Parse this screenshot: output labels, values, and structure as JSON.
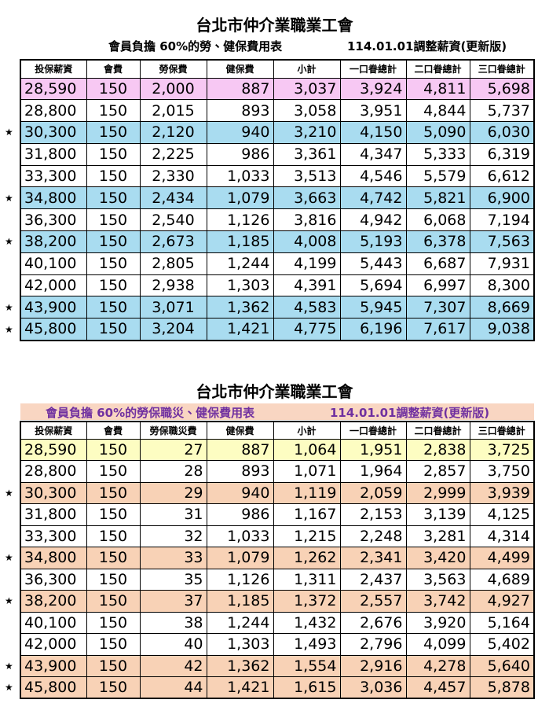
{
  "tables": [
    {
      "title": "台北市仲介業職業工會",
      "subtitle_left": "會員負擔 60%的勞、健保費用表",
      "subtitle_right": "114.01.01調整薪資(更新版)",
      "header": [
        "投保薪資",
        "會費",
        "勞保費",
        "健保費",
        "小計",
        "一口眷總計",
        "二口眷總計",
        "三口眷總計"
      ],
      "rows": [
        {
          "cells": [
            "28,590",
            "150",
            "2,000",
            "887",
            "3,037",
            "3,924",
            "4,811",
            "5,698"
          ]
        },
        {
          "cells": [
            "28,800",
            "150",
            "2,015",
            "893",
            "3,058",
            "3,951",
            "4,844",
            "5,737"
          ]
        },
        {
          "marker": "★",
          "cells": [
            "30,300",
            "150",
            "2,120",
            "940",
            "3,210",
            "4,150",
            "5,090",
            "6,030"
          ]
        },
        {
          "cells": [
            "31,800",
            "150",
            "2,225",
            "986",
            "3,361",
            "4,347",
            "5,333",
            "6,319"
          ]
        },
        {
          "cells": [
            "33,300",
            "150",
            "2,330",
            "1,033",
            "3,513",
            "4,546",
            "5,579",
            "6,612"
          ]
        },
        {
          "marker": "★",
          "cells": [
            "34,800",
            "150",
            "2,434",
            "1,079",
            "3,663",
            "4,742",
            "5,821",
            "6,900"
          ]
        },
        {
          "cells": [
            "36,300",
            "150",
            "2,540",
            "1,126",
            "3,816",
            "4,942",
            "6,068",
            "7,194"
          ]
        },
        {
          "marker": "★",
          "cells": [
            "38,200",
            "150",
            "2,673",
            "1,185",
            "4,008",
            "5,193",
            "6,378",
            "7,563"
          ]
        },
        {
          "cells": [
            "40,100",
            "150",
            "2,805",
            "1,244",
            "4,199",
            "5,443",
            "6,687",
            "7,931"
          ]
        },
        {
          "cells": [
            "42,000",
            "150",
            "2,938",
            "1,303",
            "4,391",
            "5,694",
            "6,997",
            "8,300"
          ]
        },
        {
          "marker": "★",
          "cells": [
            "43,900",
            "150",
            "3,071",
            "1,362",
            "4,583",
            "5,945",
            "7,307",
            "8,669"
          ]
        },
        {
          "marker": "★",
          "cells": [
            "45,800",
            "150",
            "3,204",
            "1,421",
            "4,775",
            "6,196",
            "7,617",
            "9,038"
          ]
        }
      ]
    },
    {
      "title": "台北市仲介業職業工會",
      "subtitle_left": "會員負擔 60%的勞保職災、健保費用表",
      "subtitle_right": "114.01.01調整薪資(更新版)",
      "header": [
        "投保薪資",
        "會費",
        "勞保職災費",
        "健保費",
        "小計",
        "一口眷總計",
        "二口眷總計",
        "三口眷總計"
      ],
      "rows": [
        {
          "cells": [
            "28,590",
            "150",
            "27",
            "887",
            "1,064",
            "1,951",
            "2,838",
            "3,725"
          ]
        },
        {
          "cells": [
            "28,800",
            "150",
            "28",
            "893",
            "1,071",
            "1,964",
            "2,857",
            "3,750"
          ]
        },
        {
          "marker": "★",
          "cells": [
            "30,300",
            "150",
            "29",
            "940",
            "1,119",
            "2,059",
            "2,999",
            "3,939"
          ]
        },
        {
          "cells": [
            "31,800",
            "150",
            "31",
            "986",
            "1,167",
            "2,153",
            "3,139",
            "4,125"
          ]
        },
        {
          "cells": [
            "33,300",
            "150",
            "32",
            "1,033",
            "1,215",
            "2,248",
            "3,281",
            "4,314"
          ]
        },
        {
          "marker": "★",
          "cells": [
            "34,800",
            "150",
            "33",
            "1,079",
            "1,262",
            "2,341",
            "3,420",
            "4,499"
          ]
        },
        {
          "cells": [
            "36,300",
            "150",
            "35",
            "1,126",
            "1,311",
            "2,437",
            "3,563",
            "4,689"
          ]
        },
        {
          "marker": "★",
          "cells": [
            "38,200",
            "150",
            "37",
            "1,185",
            "1,372",
            "2,557",
            "3,742",
            "4,927"
          ]
        },
        {
          "cells": [
            "40,100",
            "150",
            "38",
            "1,244",
            "1,432",
            "2,676",
            "3,920",
            "5,164"
          ]
        },
        {
          "cells": [
            "42,000",
            "150",
            "40",
            "1,303",
            "1,493",
            "2,796",
            "4,099",
            "5,402"
          ]
        },
        {
          "marker": "★",
          "cells": [
            "43,900",
            "150",
            "42",
            "1,362",
            "1,554",
            "2,916",
            "4,278",
            "5,640"
          ]
        },
        {
          "marker": "★",
          "cells": [
            "45,800",
            "150",
            "44",
            "1,421",
            "1,615",
            "3,036",
            "4,457",
            "5,878"
          ]
        }
      ]
    }
  ]
}
